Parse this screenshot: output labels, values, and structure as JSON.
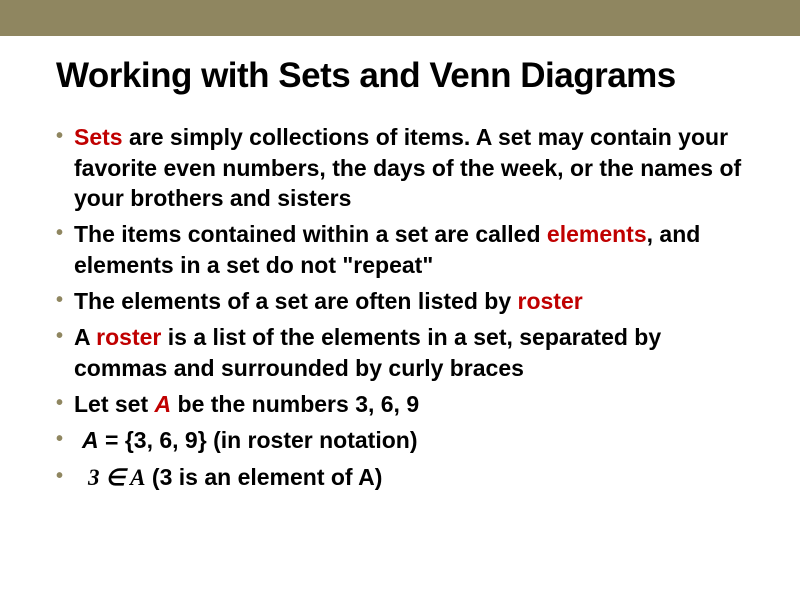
{
  "colors": {
    "accent_bar": "#8f8660",
    "highlight": "#c00000",
    "text": "#000000",
    "background": "#ffffff",
    "bullet": "#8f8660"
  },
  "title": "Working with Sets and Venn Diagrams",
  "typography": {
    "title_fontsize": 35,
    "body_fontsize": 23,
    "font_family": "Arial",
    "weight": "bold"
  },
  "bullets": {
    "b1_hl": "Sets",
    "b1_rest": " are simply collections of items. A set may contain your favorite even numbers, the days of the week, or the names of your brothers and sisters",
    "b2_a": "The items contained within a set are called ",
    "b2_hl": "elements",
    "b2_b": ", and elements in a set do not \"repeat\"",
    "b3_a": "The elements of a set are often listed by ",
    "b3_hl": "roster",
    "b4_a": "A ",
    "b4_hl": "roster",
    "b4_b": " is a list of the elements in a set, separated by commas and surrounded by curly braces",
    "b5_a": "Let set ",
    "b5_hl": "A",
    "b5_b": " be the numbers 3, 6, 9",
    "b6_a": "A",
    "b6_b": " = {3, 6, 9} (in roster notation)",
    "b7_a": "3  ∈ A",
    "b7_b": "  (3 is an element of A)"
  }
}
